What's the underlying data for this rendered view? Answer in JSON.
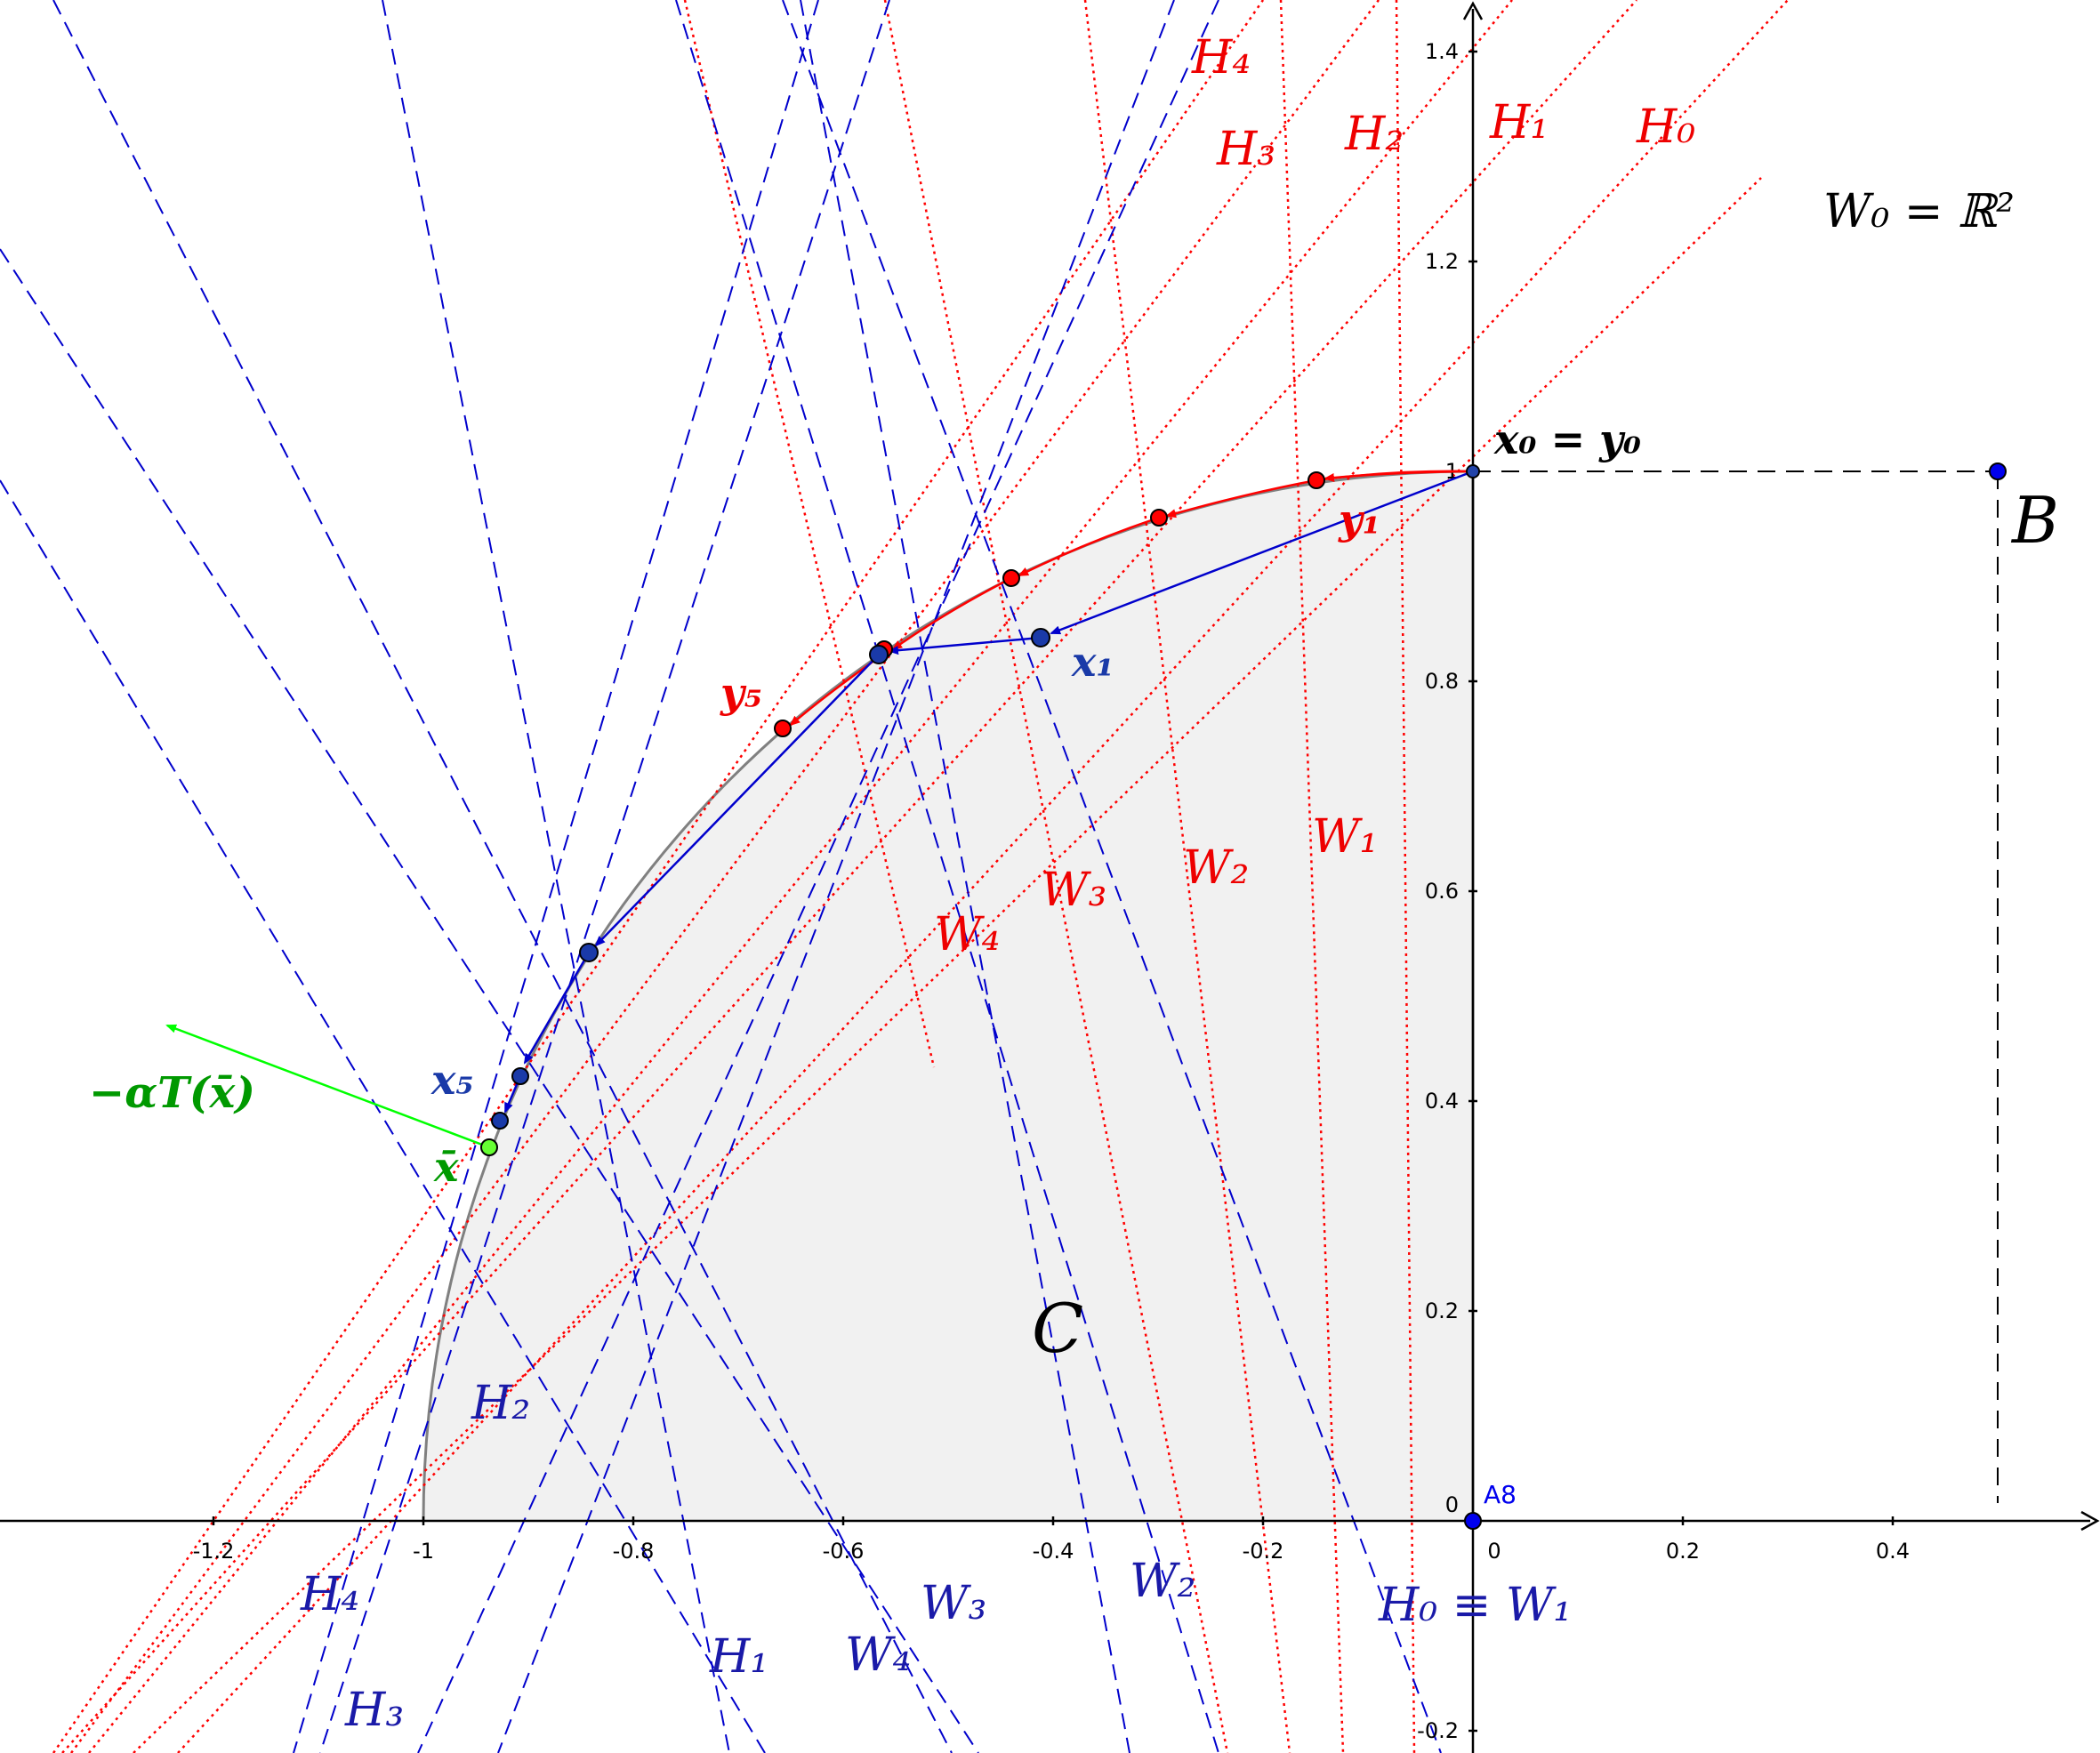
{
  "colors": {
    "red": "#ff0000",
    "blue": "#0000cc",
    "dark_blue": "#1a1aa8",
    "green": "#00cc00",
    "region_fill": "#f1f1f1",
    "curve": "#808080"
  },
  "axes": {
    "x_ticks": [
      "-1.2",
      "-1",
      "-0.8",
      "-0.6",
      "-0.4",
      "-0.2",
      "0",
      "0.2",
      "0.4"
    ],
    "y_ticks": [
      "1.4",
      "1.2",
      "1",
      "0.8",
      "0.6",
      "0.4",
      "0.2",
      "0",
      "-0.2"
    ]
  },
  "labels": {
    "w0": "W₀ = ℝ²",
    "x0_y0": "x₀ = y₀",
    "B": "B",
    "C": "C",
    "A8": "A8",
    "y1": "y₁",
    "y5": "y₅",
    "x1": "x₁",
    "x5": "x₅",
    "xbar": "x̄",
    "alpha": "−αT(x̄)",
    "red_H": [
      "H₄",
      "H₃",
      "H₂",
      "H₁",
      "H₀"
    ],
    "red_W": [
      "W₁",
      "W₂",
      "W₃",
      "W₄"
    ],
    "blue_H": [
      "H₂",
      "H₄",
      "H₃",
      "H₁"
    ],
    "blue_W": [
      "W₃",
      "W₂",
      "W₄"
    ],
    "h0w1": "H₀ ≡ W₁"
  }
}
